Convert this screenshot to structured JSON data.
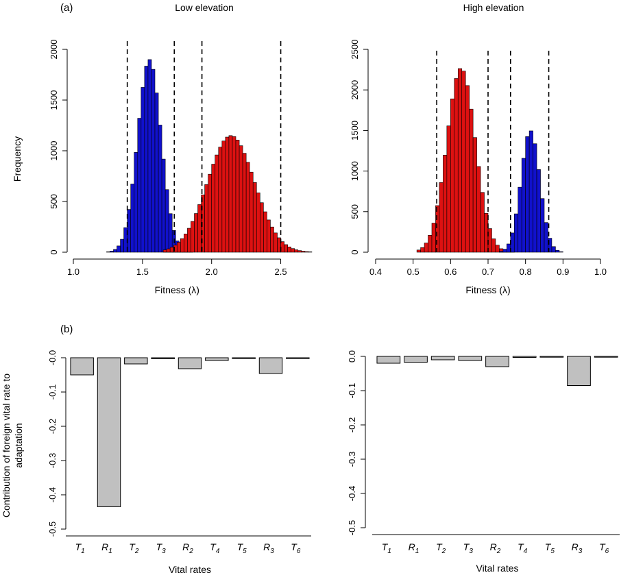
{
  "panel_labels": {
    "a": "(a)",
    "b": "(b)"
  },
  "shared": {
    "ylabel_hist": "Frequency",
    "ylabel_bar": "Contribution of foreign vital rate to adaptation",
    "ylabel_bar_line1": "Contribution of foreign vital rate to",
    "ylabel_bar_line2": "adaptation",
    "xlabel_bar": "Vital rates",
    "xlabel_hist": "Fitness (λ)"
  },
  "colors": {
    "blue": "#1111cc",
    "red": "#dd1111",
    "grey": "#c0c0c0",
    "outline": "#000000"
  },
  "chart_data": [
    {
      "type": "histogram",
      "title": "Low elevation",
      "xlabel": "Fitness (λ)",
      "ylabel": "Frequency",
      "xlim": [
        1.0,
        2.75
      ],
      "ylim": [
        0,
        2000
      ],
      "xticks": [
        "1.0",
        "1.5",
        "2.0",
        "2.5"
      ],
      "yticks": [
        "0",
        "500",
        "1000",
        "1500",
        "2000"
      ],
      "grid": false,
      "bin_width": 0.025,
      "dashed_lines": [
        1.39,
        1.73,
        1.93,
        2.5
      ],
      "series": [
        {
          "color": "blue",
          "mean": 1.55,
          "sd": 0.085,
          "peak": 1900,
          "range": [
            1.24,
            1.9
          ]
        },
        {
          "color": "red",
          "mean": 2.14,
          "sd": 0.17,
          "peak": 1150,
          "range": [
            1.65,
            2.75
          ]
        }
      ]
    },
    {
      "type": "histogram",
      "title": "High elevation",
      "xlabel": "Fitness (λ)",
      "ylabel": "",
      "xlim": [
        0.4,
        1.0
      ],
      "ylim": [
        0,
        2500
      ],
      "xticks": [
        "0.4",
        "0.5",
        "0.6",
        "0.7",
        "0.8",
        "0.9",
        "1.0"
      ],
      "yticks": [
        "0",
        "500",
        "1000",
        "1500",
        "2000",
        "2500"
      ],
      "grid": false,
      "bin_width": 0.01,
      "dashed_lines": [
        0.563,
        0.7,
        0.76,
        0.862
      ],
      "series": [
        {
          "color": "red",
          "mean": 0.628,
          "sd": 0.038,
          "peak": 2270,
          "range": [
            0.51,
            0.78
          ]
        },
        {
          "color": "blue",
          "mean": 0.813,
          "sd": 0.025,
          "peak": 1500,
          "range": [
            0.73,
            0.93
          ]
        }
      ]
    },
    {
      "type": "bar",
      "title": "",
      "xlabel": "Vital rates",
      "ylabel": "Contribution of foreign vital rate to adaptation",
      "ylim": [
        -0.5,
        0.0
      ],
      "yticks": [
        "-0.0",
        "-0.1",
        "-0.2",
        "-0.3",
        "-0.4",
        "-0.5"
      ],
      "grid": false,
      "categories": [
        {
          "main": "T",
          "sub": "1"
        },
        {
          "main": "R",
          "sub": "1"
        },
        {
          "main": "T",
          "sub": "2"
        },
        {
          "main": "T",
          "sub": "3"
        },
        {
          "main": "R",
          "sub": "2"
        },
        {
          "main": "T",
          "sub": "4"
        },
        {
          "main": "T",
          "sub": "5"
        },
        {
          "main": "R",
          "sub": "3"
        },
        {
          "main": "T",
          "sub": "6"
        }
      ],
      "values": [
        -0.05,
        -0.435,
        -0.018,
        -0.003,
        -0.032,
        -0.008,
        -0.002,
        -0.046,
        -0.002
      ]
    },
    {
      "type": "bar",
      "title": "",
      "xlabel": "Vital rates",
      "ylabel": "",
      "ylim": [
        -0.5,
        0.0
      ],
      "yticks": [
        "0.0",
        "-0.1",
        "-0.2",
        "-0.3",
        "-0.4",
        "-0.5"
      ],
      "grid": false,
      "categories": [
        {
          "main": "T",
          "sub": "1"
        },
        {
          "main": "R",
          "sub": "1"
        },
        {
          "main": "T",
          "sub": "2"
        },
        {
          "main": "T",
          "sub": "3"
        },
        {
          "main": "R",
          "sub": "2"
        },
        {
          "main": "T",
          "sub": "4"
        },
        {
          "main": "T",
          "sub": "5"
        },
        {
          "main": "R",
          "sub": "3"
        },
        {
          "main": "T",
          "sub": "6"
        }
      ],
      "values": [
        -0.02,
        -0.017,
        -0.01,
        -0.012,
        -0.03,
        -0.003,
        -0.002,
        -0.085,
        -0.002
      ]
    }
  ]
}
